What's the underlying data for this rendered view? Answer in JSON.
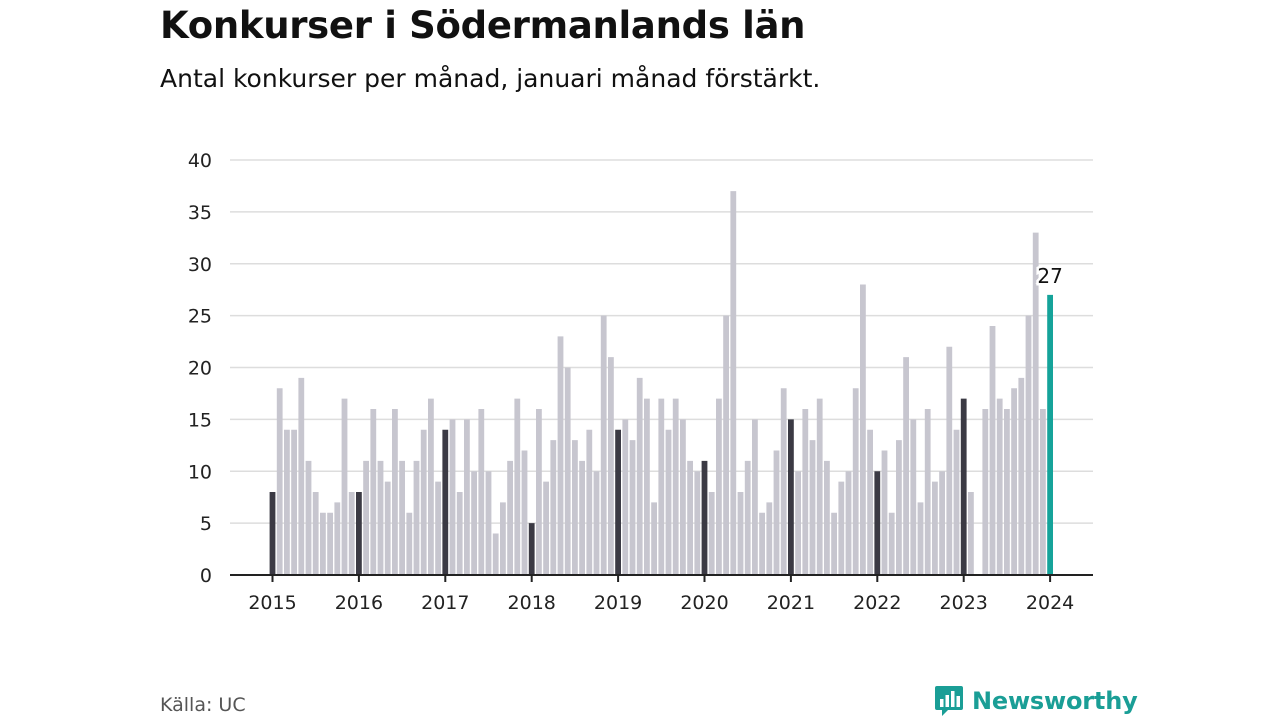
{
  "title": "Konkurser i Södermanlands län",
  "subtitle": "Antal konkurser per månad, januari månad förstärkt.",
  "source": "Källa: UC",
  "brand": {
    "name": "Newsworthy",
    "icon": "newsworthy-logo-icon"
  },
  "colors": {
    "bar": "#c7c6cf",
    "january": "#3b3a44",
    "latest": "#15a39a",
    "grid": "#dddddd",
    "axis": "#222222",
    "brand": "#1a9e96"
  },
  "chart_data": {
    "type": "bar",
    "title": "Konkurser i Södermanlands län",
    "subtitle": "Antal konkurser per månad, januari månad förstärkt.",
    "xlabel": "",
    "ylabel": "",
    "ylim": [
      0,
      40
    ],
    "yticks": [
      0,
      5,
      10,
      15,
      20,
      25,
      30,
      35,
      40
    ],
    "xticks": [
      "2015",
      "2016",
      "2017",
      "2018",
      "2019",
      "2020",
      "2021",
      "2022",
      "2023",
      "2024"
    ],
    "grid": true,
    "x_start": "2015-01",
    "x_end": "2024-01",
    "highlight": "January of each year (dark); latest month 2024-01 (teal) labelled",
    "annotations": [
      {
        "x": "2024-01",
        "text": "27"
      }
    ],
    "series": [
      {
        "values": [
          8,
          18,
          14,
          14,
          19,
          11,
          8,
          6,
          6,
          7,
          17,
          8,
          8,
          11,
          16,
          11,
          9,
          16,
          11,
          6,
          11,
          14,
          17,
          9,
          14,
          15,
          8,
          15,
          10,
          16,
          10,
          4,
          7,
          11,
          17,
          12,
          5,
          16,
          9,
          13,
          23,
          20,
          13,
          11,
          14,
          10,
          25,
          21,
          14,
          15,
          13,
          19,
          17,
          7,
          17,
          14,
          17,
          15,
          11,
          10,
          11,
          8,
          17,
          25,
          37,
          8,
          11,
          15,
          6,
          7,
          12,
          18,
          15,
          10,
          16,
          13,
          17,
          11,
          6,
          9,
          10,
          18,
          28,
          14,
          10,
          12,
          6,
          13,
          21,
          15,
          7,
          16,
          9,
          10,
          22,
          14,
          17,
          8,
          0,
          16,
          24,
          17,
          16,
          18,
          19,
          25,
          33,
          16,
          27
        ]
      }
    ]
  }
}
